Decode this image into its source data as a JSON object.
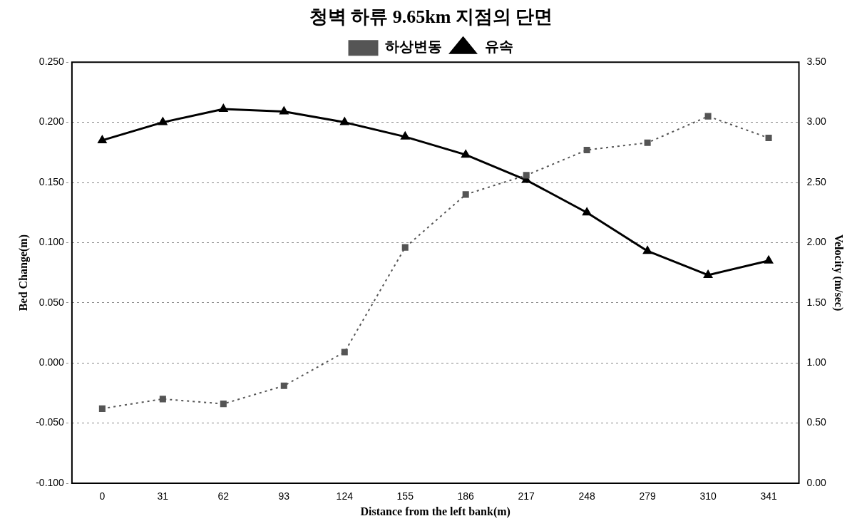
{
  "chart_data": {
    "type": "line",
    "title": "청벽 하류 9.65km 지점의 단면",
    "xlabel": "Distance from the left bank(m)",
    "ylabel": "Bed Change(m)",
    "y2label": "Velocity (m/sec)",
    "categories": [
      "0",
      "31",
      "62",
      "93",
      "124",
      "155",
      "186",
      "217",
      "248",
      "279",
      "310",
      "341"
    ],
    "series": [
      {
        "name": "하상변동",
        "color": "#555555",
        "marker": "square",
        "line_style": "dotted",
        "values": [
          -0.038,
          -0.03,
          -0.034,
          -0.019,
          0.009,
          0.096,
          0.14,
          0.156,
          0.177,
          0.183,
          0.205,
          0.187
        ]
      },
      {
        "name": "유속",
        "color": "#000000",
        "marker": "triangle",
        "line_style": "solid",
        "axis": "y2",
        "values": [
          2.85,
          3.0,
          3.11,
          3.09,
          3.0,
          2.88,
          2.73,
          2.52,
          2.25,
          1.93,
          1.73,
          1.85
        ]
      }
    ],
    "ylim": [
      -0.1,
      0.25
    ],
    "yticks": [
      {
        "value": -0.1,
        "label": "-0.100"
      },
      {
        "value": -0.05,
        "label": "-0.050"
      },
      {
        "value": 0,
        "label": "0.000"
      },
      {
        "value": 0.05,
        "label": "0.050"
      },
      {
        "value": 0.1,
        "label": "0.100"
      },
      {
        "value": 0.15,
        "label": "0.150"
      },
      {
        "value": 0.2,
        "label": "0.200"
      },
      {
        "value": 0.25,
        "label": "0.250"
      }
    ],
    "y2lim": [
      0,
      3.5
    ],
    "y2ticks": [
      {
        "value": 0,
        "label": "0.00"
      },
      {
        "value": 0.5,
        "label": "0.50"
      },
      {
        "value": 1,
        "label": "1.00"
      },
      {
        "value": 1.5,
        "label": "1.50"
      },
      {
        "value": 2,
        "label": "2.00"
      },
      {
        "value": 2.5,
        "label": "2.50"
      },
      {
        "value": 3,
        "label": "3.00"
      },
      {
        "value": 3.5,
        "label": "3.50"
      }
    ],
    "grid": "y",
    "legend": "top"
  }
}
